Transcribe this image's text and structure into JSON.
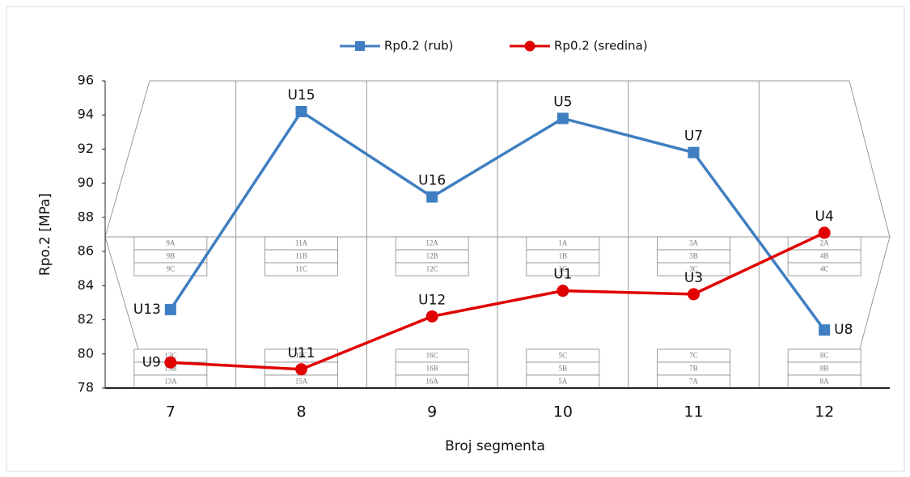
{
  "chart_data": {
    "type": "line",
    "x_label": "Broj segmenta",
    "y_label": "Rpo.2 [MPa]",
    "categories": [
      "7",
      "8",
      "9",
      "10",
      "11",
      "12"
    ],
    "ylim": [
      78,
      96
    ],
    "yticks": [
      78,
      80,
      82,
      84,
      86,
      88,
      90,
      92,
      94,
      96
    ],
    "series": [
      {
        "name": "Rp0.2 (rub)",
        "color": "#3f7fc1",
        "marker": "square",
        "values": [
          82.6,
          94.2,
          89.2,
          93.8,
          91.8,
          81.4
        ],
        "labels": [
          "U13",
          "U15",
          "U16",
          "U5",
          "U7",
          "U8"
        ]
      },
      {
        "name": "Rp0.2 (sredina)",
        "color": "#e00000",
        "marker": "circle",
        "values": [
          79.5,
          79.1,
          82.2,
          83.7,
          83.5,
          87.1
        ],
        "labels": [
          "U9",
          "U11",
          "U12",
          "U1",
          "U3",
          "U4"
        ]
      }
    ],
    "segment_blocks": [
      {
        "top": [
          "9A",
          "9B",
          "9C"
        ],
        "bottom": [
          "13C",
          "13B",
          "13A"
        ]
      },
      {
        "top": [
          "11A",
          "11B",
          "11C"
        ],
        "bottom": [
          "15C",
          "15B",
          "15A"
        ]
      },
      {
        "top": [
          "12A",
          "12B",
          "12C"
        ],
        "bottom": [
          "16C",
          "16B",
          "16A"
        ]
      },
      {
        "top": [
          "1A",
          "1B",
          "1C"
        ],
        "bottom": [
          "5C",
          "5B",
          "5A"
        ]
      },
      {
        "top": [
          "3A",
          "3B",
          "3C"
        ],
        "bottom": [
          "7C",
          "7B",
          "7A"
        ]
      },
      {
        "top": [
          "2A",
          "4B",
          "4C"
        ],
        "bottom": [
          "8C",
          "8B",
          "8A"
        ]
      }
    ]
  }
}
